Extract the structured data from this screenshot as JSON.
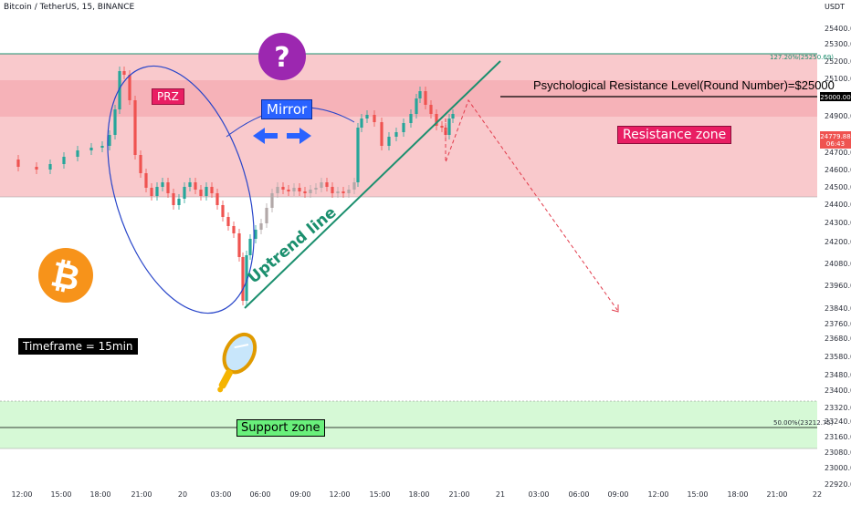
{
  "header": {
    "symbol": "Bitcoin / TetherUS, 15, BINANCE",
    "quote_currency": "USDT"
  },
  "chart_data": {
    "type": "candlestick",
    "y_axis": {
      "ticks": [
        "25400.00",
        "25300.00",
        "25200.00",
        "25100.00",
        "25000.00",
        "24900.00",
        "24800.00",
        "24700.00",
        "24600.00",
        "24500.00",
        "24400.00",
        "24300.00",
        "24200.00",
        "24080.00",
        "23960.00",
        "23840.00",
        "23760.00",
        "23680.00",
        "23580.00",
        "23480.00",
        "23400.00",
        "23320.00",
        "23240.00",
        "23160.00",
        "23080.00",
        "23000.00",
        "22920.00"
      ],
      "range": [
        22920,
        25400
      ]
    },
    "x_axis": {
      "ticks": [
        "12:00",
        "15:00",
        "18:00",
        "21:00",
        "20",
        "03:00",
        "06:00",
        "09:00",
        "12:00",
        "15:00",
        "18:00",
        "21:00",
        "21",
        "03:00",
        "06:00",
        "09:00",
        "12:00",
        "15:00",
        "18:00",
        "21:00",
        "22"
      ]
    },
    "current_price": {
      "value": "24779.88",
      "countdown": "06:43"
    },
    "level_25000": "25000.00",
    "zones": {
      "resistance": {
        "top": 25250,
        "bottom": 24460
      },
      "prz": {
        "top": 25100,
        "bottom": 24910
      },
      "support": {
        "top": 23310,
        "bottom": 23140
      }
    },
    "fib_labels": {
      "top": "127.20%(25250.69)",
      "bottom": "50.00%(23212.75)"
    },
    "colors": {
      "up": "#b2a8a8",
      "down": "#ef5350",
      "up_green": "#26a69a",
      "resistance": "#f7bcc0",
      "support": "#b7f5b9"
    }
  },
  "annotations": {
    "prz": "PRZ",
    "mirror": "Mirror",
    "resistance_zone": "Resistance zone",
    "support_zone": "Support zone",
    "timeframe": "Timeframe = 15min",
    "psych_level": "Psychological Resistance Level(Round Number)=$25000",
    "uptrend": "Uptrend line",
    "question": "?"
  },
  "icons": [
    "question-icon",
    "bitcoin-icon",
    "mirror-icon",
    "arrows-icon"
  ]
}
